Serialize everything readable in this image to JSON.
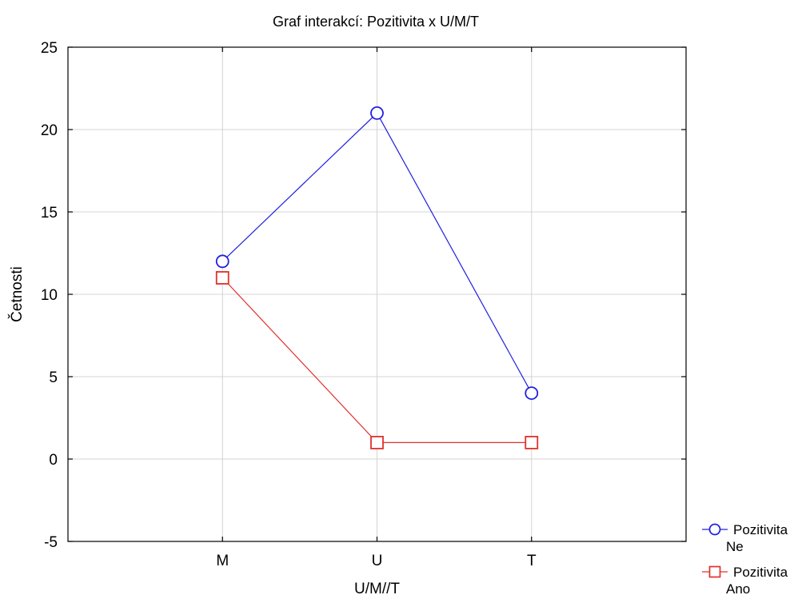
{
  "chart_data": {
    "type": "line",
    "title": "Graf interakcí: Pozitivita x U/M/T",
    "xlabel": "U/M//T",
    "ylabel": "Četnosti",
    "categories": [
      "M",
      "U",
      "T"
    ],
    "ylim": [
      -5,
      25
    ],
    "yticks": [
      -5,
      0,
      5,
      10,
      15,
      20,
      25
    ],
    "grid": true,
    "legend_position": "bottom-right",
    "series": [
      {
        "name": "Pozitivita Ne",
        "name_lines": [
          "Pozitivita",
          "Ne"
        ],
        "values": [
          12,
          21,
          4
        ],
        "color": "#2020e0",
        "marker": "circle"
      },
      {
        "name": "Pozitivita Ano",
        "name_lines": [
          "Pozitivita",
          "Ano"
        ],
        "values": [
          11,
          1,
          1
        ],
        "color": "#e0312d",
        "marker": "square"
      }
    ]
  }
}
